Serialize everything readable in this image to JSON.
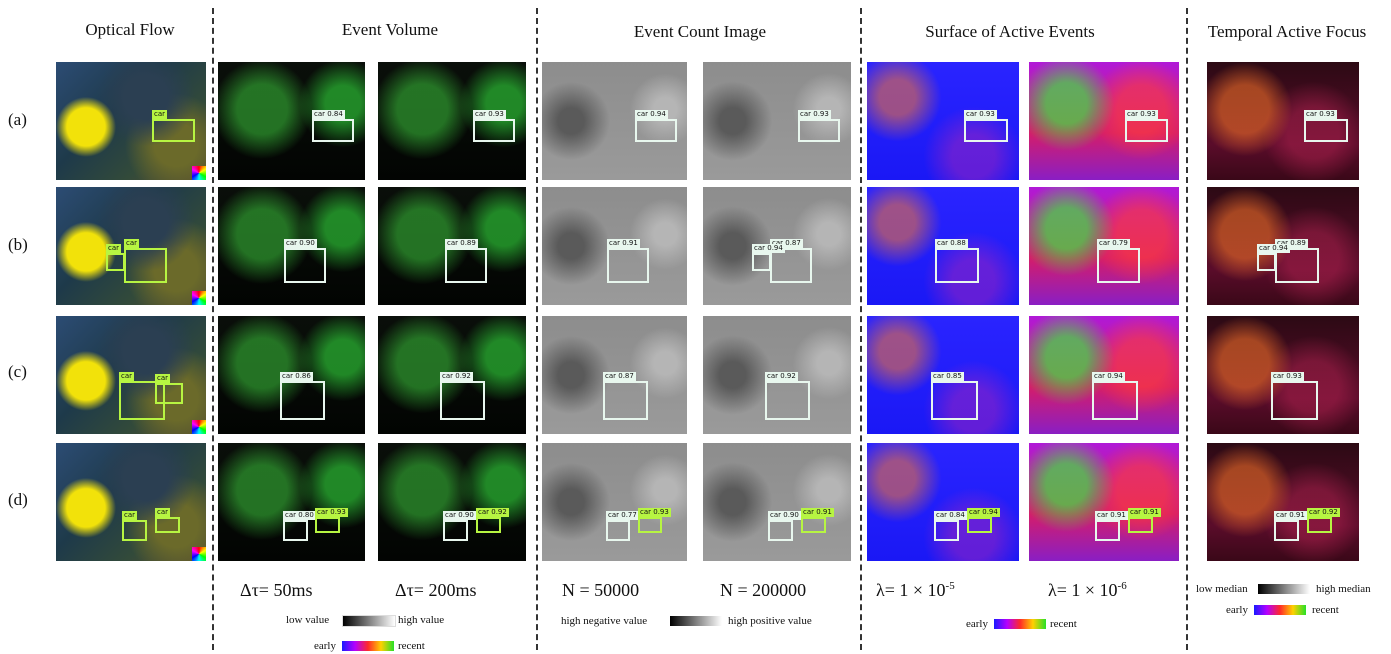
{
  "columns": {
    "optical_flow": "Optical Flow",
    "event_volume": "Event Volume",
    "event_count_image": "Event Count Image",
    "surface_active_events": "Surface of Active Events",
    "temporal_active_focus": "Temporal Active Focus"
  },
  "rows": [
    "(a)",
    "(b)",
    "(c)",
    "(d)"
  ],
  "params": {
    "ev_delta_left": "Δτ= 50ms",
    "ev_delta_right": "Δτ= 200ms",
    "eci_n_left": "N = 50000",
    "eci_n_right": "N = 200000",
    "sae_lambda_left_base": "λ= 1 × 10",
    "sae_lambda_left_exp": "-5",
    "sae_lambda_right_base": "λ= 1 × 10",
    "sae_lambda_right_exp": "-6"
  },
  "legends": {
    "ev_low": "low value",
    "ev_high": "high value",
    "ev_early": "early",
    "ev_recent": "recent",
    "eci_low": "high negative value",
    "eci_high": "high positive value",
    "sae_early": "early",
    "sae_recent": "recent",
    "taf_low": "low median",
    "taf_high": "high median",
    "taf_early": "early",
    "taf_recent": "recent"
  },
  "detections": {
    "of": [
      [
        "car"
      ],
      [
        "car",
        "car"
      ],
      [
        "car",
        "car",
        "car"
      ],
      [
        "car",
        "car",
        "car"
      ]
    ],
    "ev1": [
      [
        "0.84"
      ],
      [
        "0.90"
      ],
      [
        "0.86"
      ],
      [
        "0.80",
        "0.93"
      ]
    ],
    "ev2": [
      [
        "0.93"
      ],
      [
        "0.89"
      ],
      [
        "0.92"
      ],
      [
        "0.90",
        "0.92"
      ]
    ],
    "eci1": [
      [
        "0.94"
      ],
      [
        "0.91"
      ],
      [
        "0.87"
      ],
      [
        "0.77",
        "0.93"
      ]
    ],
    "eci2": [
      [
        "0.93"
      ],
      [
        "0.87",
        "0.94"
      ],
      [
        "0.92"
      ],
      [
        "0.90",
        "0.91"
      ]
    ],
    "sae1": [
      [
        "0.93"
      ],
      [
        "0.88"
      ],
      [
        "0.85"
      ],
      [
        "0.84",
        "0.94"
      ]
    ],
    "sae2": [
      [
        "0.93"
      ],
      [
        "0.79"
      ],
      [
        "0.94"
      ],
      [
        "0.91",
        "0.91"
      ]
    ],
    "taf": [
      [
        "0.93"
      ],
      [
        "0.89",
        "0.94"
      ],
      [
        "0.93"
      ],
      [
        "0.91",
        "0.92"
      ]
    ]
  },
  "colors": {
    "box_white": "#e8f7ee",
    "box_green": "#b7f542",
    "divider": "#333333"
  }
}
